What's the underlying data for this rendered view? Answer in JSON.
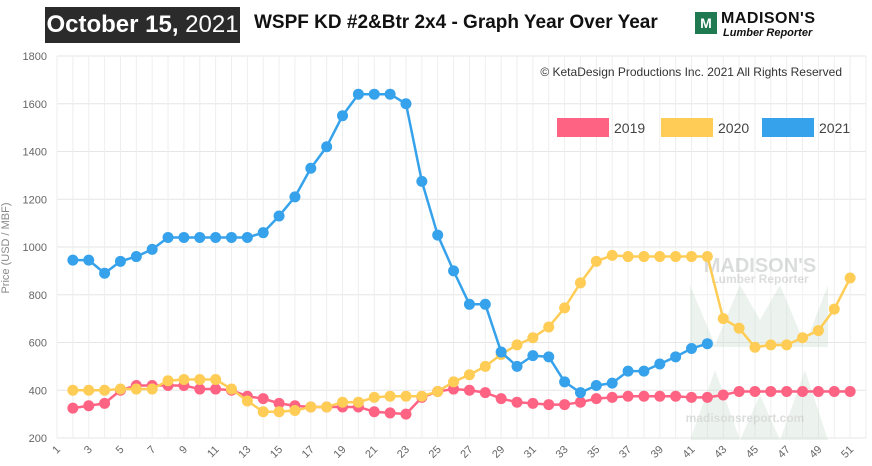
{
  "header": {
    "date_bold": "October 15,",
    "date_year": " 2021",
    "title": "WSPF KD #2&Btr 2x4 - Graph Year Over Year",
    "logo_line1": "MADISON'S",
    "logo_line2": "Lumber Reporter",
    "logo_mark": "M"
  },
  "copyright": "© KetaDesign Productions Inc. 2021 All Rights Reserved",
  "watermark": {
    "line1": "MADISON'S",
    "line2": "Lumber Reporter",
    "url": "madisonsreport.com"
  },
  "chart_data": {
    "type": "line",
    "title": "WSPF KD #2&Btr 2x4 - Graph Year Over Year",
    "ylabel": "Price (USD / MBF)",
    "xlabel": "",
    "ylim": [
      200,
      1800
    ],
    "xlim": [
      1,
      52
    ],
    "yticks": [
      200,
      400,
      600,
      800,
      1000,
      1200,
      1400,
      1600,
      1800
    ],
    "xticks": [
      1,
      3,
      5,
      7,
      9,
      11,
      13,
      15,
      17,
      19,
      21,
      23,
      25,
      27,
      29,
      31,
      33,
      35,
      37,
      39,
      41,
      43,
      45,
      47,
      49,
      51
    ],
    "grid": true,
    "legend_position": "top-right",
    "series": [
      {
        "name": "2019",
        "color": "#ff6384",
        "x": [
          2,
          3,
          4,
          5,
          6,
          7,
          8,
          9,
          10,
          11,
          12,
          13,
          14,
          15,
          16,
          17,
          18,
          19,
          20,
          21,
          22,
          23,
          24,
          25,
          26,
          27,
          28,
          29,
          30,
          31,
          32,
          33,
          34,
          35,
          36,
          37,
          38,
          39,
          40,
          41,
          42,
          43,
          44,
          45,
          46,
          47,
          48,
          49,
          50,
          51
        ],
        "values": [
          325,
          335,
          345,
          400,
          420,
          420,
          420,
          420,
          405,
          405,
          400,
          375,
          365,
          345,
          335,
          330,
          330,
          330,
          330,
          310,
          305,
          300,
          370,
          395,
          405,
          400,
          390,
          365,
          350,
          345,
          340,
          340,
          350,
          365,
          370,
          375,
          375,
          375,
          375,
          370,
          370,
          380,
          395,
          395,
          395,
          395,
          395,
          395,
          395,
          395
        ]
      },
      {
        "name": "2020",
        "color": "#ffcd56",
        "x": [
          2,
          3,
          4,
          5,
          6,
          7,
          8,
          9,
          10,
          11,
          12,
          13,
          14,
          15,
          16,
          17,
          18,
          19,
          20,
          21,
          22,
          23,
          24,
          25,
          26,
          27,
          28,
          29,
          30,
          31,
          32,
          33,
          34,
          35,
          36,
          37,
          38,
          39,
          40,
          41,
          42,
          43,
          44,
          45,
          46,
          47,
          48,
          49,
          50,
          51
        ],
        "values": [
          400,
          400,
          400,
          405,
          405,
          405,
          440,
          445,
          445,
          445,
          405,
          355,
          310,
          310,
          315,
          330,
          330,
          350,
          350,
          370,
          375,
          375,
          375,
          395,
          435,
          465,
          500,
          550,
          590,
          620,
          665,
          745,
          850,
          940,
          965,
          960,
          960,
          960,
          960,
          960,
          960,
          700,
          660,
          580,
          590,
          590,
          620,
          650,
          740,
          870
        ]
      },
      {
        "name": "2021",
        "color": "#36a2eb",
        "x": [
          2,
          3,
          4,
          5,
          6,
          7,
          8,
          9,
          10,
          11,
          12,
          13,
          14,
          15,
          16,
          17,
          18,
          19,
          20,
          21,
          22,
          23,
          24,
          25,
          26,
          27,
          28,
          29,
          30,
          31,
          32,
          33,
          34,
          35,
          36,
          37,
          38,
          39,
          40,
          41,
          42
        ],
        "values": [
          945,
          945,
          890,
          940,
          960,
          990,
          1040,
          1040,
          1040,
          1040,
          1040,
          1040,
          1060,
          1130,
          1210,
          1330,
          1420,
          1550,
          1640,
          1640,
          1640,
          1600,
          1275,
          1050,
          900,
          760,
          760,
          560,
          500,
          545,
          540,
          435,
          390,
          420,
          430,
          480,
          480,
          510,
          540,
          575,
          595
        ]
      }
    ]
  }
}
